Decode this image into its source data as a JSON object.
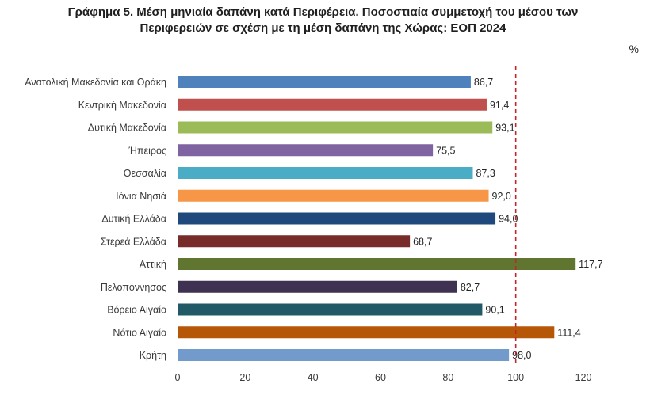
{
  "title": {
    "line1": "Γράφημα 5. Μέση μηνιαία δαπάνη κατά Περιφέρεια. Ποσοστιαία συμμετοχή του μέσου των",
    "line2": "Περιφερειών σε σχέση με τη μέση δαπάνη της Χώρας: ΕΟΠ 2024"
  },
  "chart_data": {
    "type": "bar",
    "orientation": "horizontal",
    "unit_label": "%",
    "categories": [
      "Ανατολική Μακεδονία και Θράκη",
      "Κεντρική Μακεδονία",
      "Δυτική Μακεδονία",
      "Ήπειρος",
      "Θεσσαλία",
      "Ιόνια Νησιά",
      "Δυτική Ελλάδα",
      "Στερεά Ελλάδα",
      "Αττική",
      "Πελοπόννησος",
      "Βόρειο Αιγαίο",
      "Νότιο Αιγαίο",
      "Κρήτη"
    ],
    "values": [
      86.7,
      91.4,
      93.1,
      75.5,
      87.3,
      92.0,
      94.0,
      68.7,
      117.7,
      82.7,
      90.1,
      111.4,
      98.0
    ],
    "value_labels": [
      "86,7",
      "91,4",
      "93,1",
      "75,5",
      "87,3",
      "92,0",
      "94,0",
      "68,7",
      "117,7",
      "82,7",
      "90,1",
      "111,4",
      "98,0"
    ],
    "colors": [
      "#4f81bd",
      "#c0504d",
      "#9bbb59",
      "#8064a2",
      "#4bacc6",
      "#f79646",
      "#1f497d",
      "#772c2a",
      "#5f7530",
      "#3f3151",
      "#215967",
      "#b65708",
      "#729aca"
    ],
    "xlim": [
      0,
      120
    ],
    "xticks": [
      "0",
      "20",
      "40",
      "60",
      "80",
      "100",
      "120"
    ],
    "reference_line": {
      "value": 100,
      "color": "#c0262d",
      "style": "dashed"
    },
    "grid": false,
    "legend": "none"
  }
}
